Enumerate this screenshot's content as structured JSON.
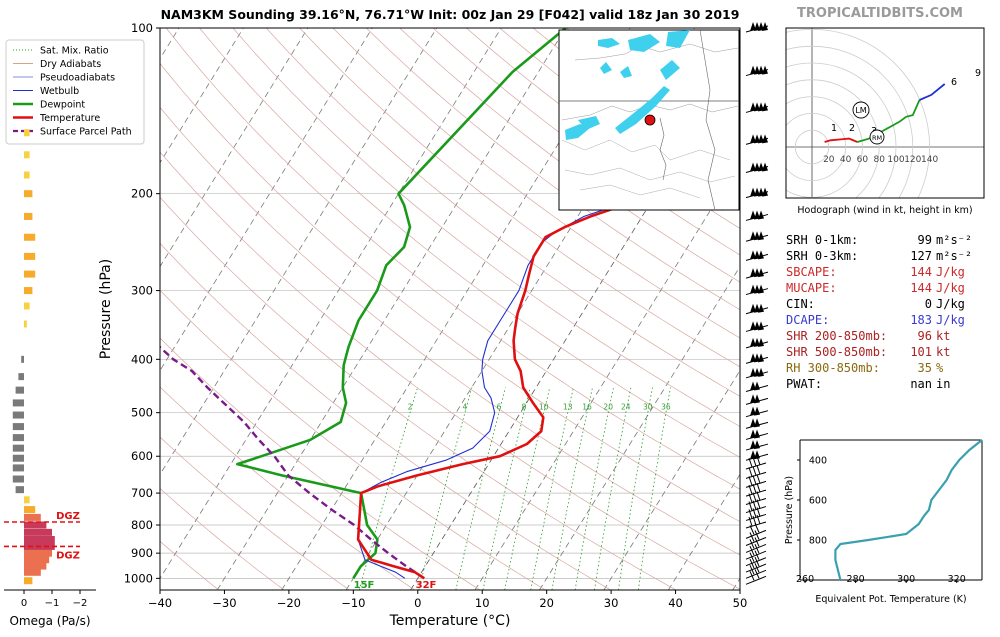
{
  "title": "NAM3KM Sounding 39.16°N, 76.71°W Init: 00z Jan 29 [F042] valid 18z Jan 30 2019",
  "brand": "TROPICALTIDBITS.COM",
  "skewt": {
    "xlabel": "Temperature (°C)",
    "ylabel": "Pressure (hPa)",
    "x_ticks": [
      "−40",
      "−30",
      "−20",
      "−10",
      "0",
      "10",
      "20",
      "30",
      "40",
      "50"
    ],
    "p_ticks": [
      {
        "p": 100,
        "label": "100"
      },
      {
        "p": 200,
        "label": "200"
      },
      {
        "p": 300,
        "label": "300"
      },
      {
        "p": 400,
        "label": "400"
      },
      {
        "p": 500,
        "label": "500"
      },
      {
        "p": 600,
        "label": "600"
      },
      {
        "p": 700,
        "label": "700"
      },
      {
        "p": 800,
        "label": "800"
      },
      {
        "p": 900,
        "label": "900"
      },
      {
        "p": 1000,
        "label": "1000"
      }
    ],
    "mix_labels": [
      "2",
      "4",
      "6",
      "8",
      "10",
      "13",
      "16",
      "20",
      "24",
      "30",
      "36"
    ],
    "labels_15f": "15F",
    "labels_32f": "32F"
  },
  "legend": [
    {
      "label": "Sat. Mix. Ratio",
      "color": "#2a9a2a",
      "style": "dotted"
    },
    {
      "label": "Dry Adiabats",
      "color": "#d4a58a",
      "style": "solid"
    },
    {
      "label": "Pseudoadiabats",
      "color": "#8a8ad8",
      "style": "solid"
    },
    {
      "label": "Wetbulb",
      "color": "#2030d0",
      "style": "solid"
    },
    {
      "label": "Dewpoint",
      "color": "#1a9a1a",
      "style": "thick"
    },
    {
      "label": "Temperature",
      "color": "#e01010",
      "style": "thick"
    },
    {
      "label": "Surface Parcel Path",
      "color": "#7a1a8a",
      "style": "dashed"
    }
  ],
  "omega": {
    "xlabel": "Omega (Pa/s)",
    "ticks": [
      "0",
      "−1",
      "−2"
    ],
    "dgz_label": "DGZ"
  },
  "hodograph": {
    "caption": "Hodograph (wind in kt, height in km)",
    "ring_labels": [
      "20",
      "40",
      "60",
      "80",
      "100",
      "120",
      "140"
    ],
    "height_labels": [
      "1",
      "2",
      "3",
      "6",
      "9"
    ],
    "markers": [
      "LM",
      "RM"
    ]
  },
  "indices": [
    {
      "label": "SRH 0-1km:",
      "value": "99",
      "unit": "m²s⁻²",
      "color": "#000000"
    },
    {
      "label": "SRH 0-3km:",
      "value": "127",
      "unit": "m²s⁻²",
      "color": "#000000"
    },
    {
      "label": "SBCAPE:",
      "value": "144",
      "unit": "J/kg",
      "color": "#cc2a2a"
    },
    {
      "label": "MUCAPE:",
      "value": "144",
      "unit": "J/kg",
      "color": "#cc2a2a"
    },
    {
      "label": "CIN:",
      "value": "0",
      "unit": "J/kg",
      "color": "#000000"
    },
    {
      "label": "DCAPE:",
      "value": "183",
      "unit": "J/kg",
      "color": "#3a3ad0"
    },
    {
      "label": "SHR 200-850mb:",
      "value": "96",
      "unit": "kt",
      "color": "#aa2222"
    },
    {
      "label": "SHR 500-850mb:",
      "value": "101",
      "unit": "kt",
      "color": "#aa2222"
    },
    {
      "label": "RH 300-850mb:",
      "value": "35",
      "unit": "%",
      "color": "#8a6a10"
    },
    {
      "label": "PWAT:",
      "value": "nan",
      "unit": "in",
      "color": "#000000"
    }
  ],
  "theta_e_panel": {
    "xlabel": "Equivalent Pot. Temperature (K)",
    "ylabel": "Pressure (hPa)",
    "x_ticks": [
      "260",
      "280",
      "300",
      "320"
    ],
    "y_ticks": [
      "400",
      "600",
      "800"
    ]
  },
  "chart_data": [
    {
      "type": "line",
      "title": "NAM3KM Sounding 39.16°N, 76.71°W Init: 00z Jan 29 [F042] valid 18z Jan 30 2019",
      "xlabel": "Temperature (°C)",
      "ylabel": "Pressure (hPa)",
      "xlim": [
        -40,
        50
      ],
      "ylim": [
        1050,
        100
      ],
      "yscale": "log",
      "series": [
        {
          "name": "Temperature",
          "points": [
            [
              1,
              1000
            ],
            [
              -1,
              975
            ],
            [
              -5,
              950
            ],
            [
              -9,
              925
            ],
            [
              -13,
              850
            ],
            [
              -17,
              700
            ],
            [
              -15,
              680
            ],
            [
              -10,
              650
            ],
            [
              -4,
              620
            ],
            [
              1,
              600
            ],
            [
              4,
              570
            ],
            [
              5,
              540
            ],
            [
              4,
              510
            ],
            [
              1,
              480
            ],
            [
              -2,
              450
            ],
            [
              -4,
              420
            ],
            [
              -6,
              400
            ],
            [
              -8,
              370
            ],
            [
              -9,
              350
            ],
            [
              -10,
              330
            ],
            [
              -11,
              300
            ],
            [
              -12,
              280
            ],
            [
              -13,
              260
            ],
            [
              -13,
              245
            ],
            [
              -13,
              240
            ],
            [
              -11,
              230
            ],
            [
              -8,
              220
            ],
            [
              -4,
              210
            ],
            [
              1,
              200
            ],
            [
              3,
              185
            ],
            [
              5,
              170
            ],
            [
              4,
              155
            ],
            [
              4,
              140
            ],
            [
              4,
              125
            ],
            [
              3,
              115
            ],
            [
              3,
              108
            ],
            [
              4,
              100
            ]
          ]
        },
        {
          "name": "Wetbulb",
          "points": [
            [
              -2,
              1000
            ],
            [
              -4,
              975
            ],
            [
              -7,
              950
            ],
            [
              -10,
              925
            ],
            [
              -13,
              850
            ],
            [
              -17,
              700
            ],
            [
              -15,
              670
            ],
            [
              -12,
              640
            ],
            [
              -7,
              610
            ],
            [
              -4,
              580
            ],
            [
              -3,
              540
            ],
            [
              -4,
              500
            ],
            [
              -6,
              470
            ],
            [
              -8,
              450
            ],
            [
              -10,
              420
            ],
            [
              -11,
              400
            ],
            [
              -12,
              370
            ],
            [
              -12,
              340
            ],
            [
              -12,
              300
            ],
            [
              -13,
              270
            ],
            [
              -13,
              245
            ],
            [
              -12,
              235
            ],
            [
              -9,
              220
            ],
            [
              -5,
              210
            ],
            [
              -1,
              200
            ],
            [
              2,
              185
            ],
            [
              3,
              170
            ],
            [
              3,
              150
            ],
            [
              3,
              130
            ],
            [
              2,
              115
            ],
            [
              3,
              100
            ]
          ]
        },
        {
          "name": "Dewpoint",
          "points": [
            [
              -10,
              1000
            ],
            [
              -10,
              950
            ],
            [
              -9,
              900
            ],
            [
              -10,
              850
            ],
            [
              -13,
              800
            ],
            [
              -17,
              700
            ],
            [
              -31,
              650
            ],
            [
              -39,
              620
            ],
            [
              -36,
              600
            ],
            [
              -30,
              560
            ],
            [
              -27,
              520
            ],
            [
              -28,
              480
            ],
            [
              -30,
              450
            ],
            [
              -32,
              410
            ],
            [
              -33,
              380
            ],
            [
              -34,
              340
            ],
            [
              -34,
              300
            ],
            [
              -35,
              270
            ],
            [
              -34,
              250
            ],
            [
              -35,
              230
            ],
            [
              -38,
              210
            ],
            [
              -40,
              200
            ],
            [
              -34,
              120
            ],
            [
              -30,
              100
            ]
          ]
        },
        {
          "name": "Surface Parcel Path",
          "points": [
            [
              1,
              1000
            ],
            [
              -3,
              950
            ],
            [
              -7,
              900
            ],
            [
              -11,
              850
            ],
            [
              -15,
              800
            ],
            [
              -20,
              750
            ],
            [
              -25,
              700
            ],
            [
              -30,
              650
            ],
            [
              -34,
              600
            ],
            [
              -38,
              560
            ],
            [
              -42,
              520
            ],
            [
              -47,
              480
            ],
            [
              -51,
              450
            ],
            [
              -55,
              420
            ],
            [
              -59,
              400
            ],
            [
              -64,
              370
            ],
            [
              -68,
              350
            ],
            [
              -72,
              330
            ],
            [
              -77,
              310
            ]
          ]
        }
      ]
    },
    {
      "type": "bar",
      "xlabel": "Omega (Pa/s)",
      "ylim": [
        1050,
        100
      ],
      "values_pa_s": [
        {
          "p": 1010,
          "v": -0.3
        },
        {
          "p": 975,
          "v": -0.6
        },
        {
          "p": 950,
          "v": -0.8
        },
        {
          "p": 925,
          "v": -0.9
        },
        {
          "p": 900,
          "v": -1.0
        },
        {
          "p": 875,
          "v": -1.1
        },
        {
          "p": 850,
          "v": -1.1
        },
        {
          "p": 825,
          "v": -1.0
        },
        {
          "p": 800,
          "v": -0.8
        },
        {
          "p": 775,
          "v": -0.6
        },
        {
          "p": 750,
          "v": -0.4
        },
        {
          "p": 720,
          "v": -0.2
        },
        {
          "p": 690,
          "v": 0.3
        },
        {
          "p": 660,
          "v": 0.4
        },
        {
          "p": 630,
          "v": 0.4
        },
        {
          "p": 605,
          "v": 0.4
        },
        {
          "p": 580,
          "v": 0.4
        },
        {
          "p": 555,
          "v": 0.4
        },
        {
          "p": 530,
          "v": 0.4
        },
        {
          "p": 505,
          "v": 0.4
        },
        {
          "p": 480,
          "v": 0.4
        },
        {
          "p": 455,
          "v": 0.3
        },
        {
          "p": 430,
          "v": 0.2
        },
        {
          "p": 400,
          "v": 0.1
        },
        {
          "p": 345,
          "v": -0.1
        },
        {
          "p": 320,
          "v": -0.2
        },
        {
          "p": 300,
          "v": -0.3
        },
        {
          "p": 280,
          "v": -0.4
        },
        {
          "p": 260,
          "v": -0.4
        },
        {
          "p": 240,
          "v": -0.4
        },
        {
          "p": 220,
          "v": -0.3
        },
        {
          "p": 200,
          "v": -0.3
        },
        {
          "p": 185,
          "v": -0.2
        },
        {
          "p": 170,
          "v": -0.2
        },
        {
          "p": 155,
          "v": -0.2
        }
      ],
      "dgz_bounds_hpa": [
        790,
        875
      ]
    },
    {
      "type": "line",
      "title": "Hodograph (wind in kt, height in km)",
      "points_uv_kt": [
        [
          15,
          6
        ],
        [
          22,
          8
        ],
        [
          34,
          9
        ],
        [
          44,
          10
        ],
        [
          54,
          6
        ],
        [
          68,
          10
        ],
        [
          84,
          19
        ],
        [
          104,
          30
        ],
        [
          112,
          36
        ],
        [
          120,
          38
        ],
        [
          128,
          56
        ],
        [
          142,
          62
        ],
        [
          158,
          75
        ]
      ]
    },
    {
      "type": "line",
      "xlabel": "Equivalent Pot. Temperature (K)",
      "ylabel": "Pressure (hPa)",
      "xlim": [
        258,
        330
      ],
      "ylim": [
        1000,
        300
      ],
      "points": [
        [
          274,
          1000
        ],
        [
          273,
          950
        ],
        [
          272,
          900
        ],
        [
          272,
          850
        ],
        [
          274,
          820
        ],
        [
          285,
          800
        ],
        [
          300,
          770
        ],
        [
          305,
          720
        ],
        [
          307,
          680
        ],
        [
          309,
          650
        ],
        [
          310,
          600
        ],
        [
          313,
          550
        ],
        [
          316,
          500
        ],
        [
          318,
          450
        ],
        [
          321,
          400
        ],
        [
          325,
          350
        ],
        [
          330,
          300
        ]
      ]
    }
  ]
}
